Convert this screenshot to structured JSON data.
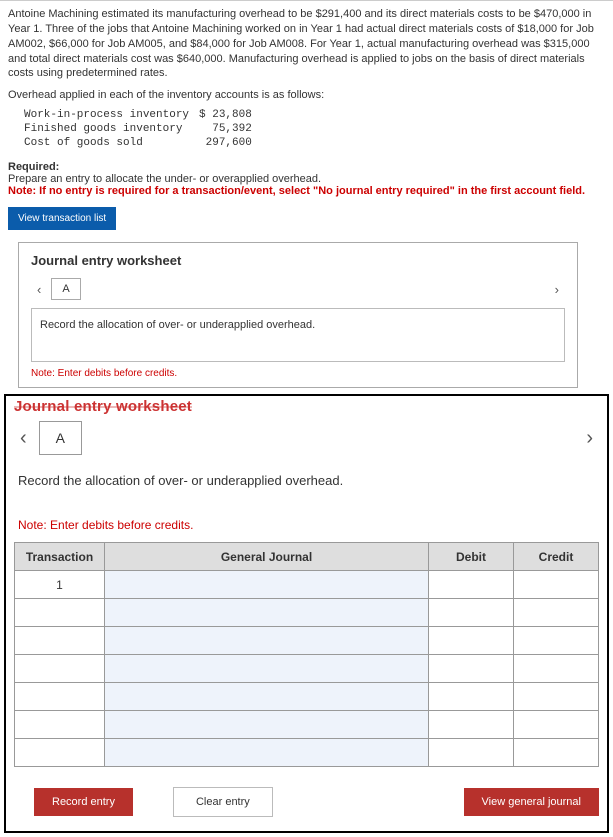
{
  "problem": {
    "paragraph": "Antoine Machining estimated its manufacturing overhead to be $291,400 and its direct materials costs to be $470,000 in Year 1. Three of the jobs that Antoine Machining worked on in Year 1 had actual direct materials costs of $18,000 for Job AM002, $66,000 for Job AM005, and $84,000 for Job AM008. For Year 1, actual manufacturing overhead was $315,000 and total direct materials cost was $640,000. Manufacturing overhead is applied to jobs on the basis of direct materials costs using predetermined rates.",
    "applied_head": "Overhead applied in each of the inventory accounts is as follows:",
    "accounts": [
      {
        "label": "Work-in-process inventory",
        "amount": "$ 23,808"
      },
      {
        "label": "Finished goods inventory",
        "amount": "75,392"
      },
      {
        "label": "Cost of goods sold",
        "amount": "297,600"
      }
    ],
    "required_title": "Required:",
    "required_line": "Prepare an entry to allocate the under- or overapplied overhead.",
    "required_note": "Note: If no entry is required for a transaction/event, select \"No journal entry required\" in the first account field."
  },
  "buttons": {
    "view_tx_list": "View transaction list",
    "record_entry": "Record entry",
    "clear_entry": "Clear entry",
    "view_general_journal": "View general journal"
  },
  "small_ws": {
    "title": "Journal entry worksheet",
    "tab": "A",
    "instruction": "Record the allocation of over- or underapplied overhead.",
    "note": "Note: Enter debits before credits."
  },
  "big_ws": {
    "title_struck": "Journal entry worksheet",
    "tab": "A",
    "instruction": "Record the allocation of over- or underapplied overhead.",
    "note": "Note: Enter debits before credits.",
    "table": {
      "headers": {
        "tx": "Transaction",
        "gj": "General Journal",
        "debit": "Debit",
        "credit": "Credit"
      },
      "first_tx": "1",
      "blank_rows": 6
    }
  },
  "colors": {
    "blue_btn": "#0b5cab",
    "red_btn": "#b7312c",
    "header_bg": "#dedede",
    "gj_cell_bg": "#eef3fb",
    "note_red": "#cc0000"
  }
}
